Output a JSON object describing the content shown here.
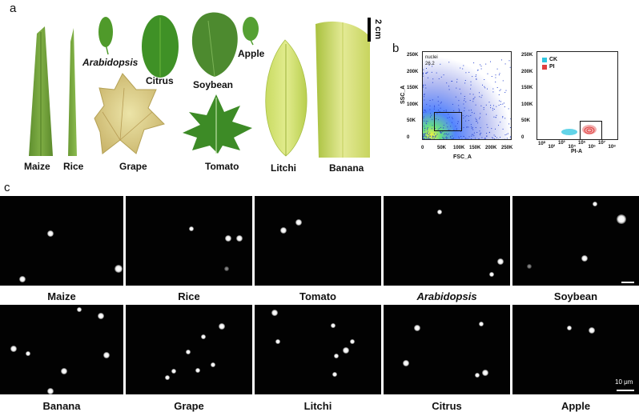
{
  "panels": {
    "a": "a",
    "b": "b",
    "c": "c"
  },
  "leaves": {
    "maize": "Maize",
    "rice": "Rice",
    "arabidopsis": "Arabidopsis",
    "grape": "Grape",
    "citrus": "Citrus",
    "soybean": "Soybean",
    "apple": "Apple",
    "tomato": "Tomato",
    "litchi": "Litchi",
    "banana": "Banana",
    "scale_label": "2 cm"
  },
  "flow_left": {
    "gate_name": "nuclei",
    "gate_value": "26.2",
    "xlabel": "FSC_A",
    "ylabel": "SSC_A",
    "x_ticks": [
      "0",
      "50K",
      "100K",
      "150K",
      "200K",
      "250K"
    ],
    "y_ticks": [
      "250K",
      "200K",
      "150K",
      "100K",
      "50K",
      "0"
    ]
  },
  "flow_right": {
    "legend": [
      {
        "name": "CK",
        "color": "#2fc6e0"
      },
      {
        "name": "PI",
        "color": "#e04040"
      }
    ],
    "xlabel": "PI-A",
    "x_ticks": [
      "10⁰",
      "10²",
      "10³",
      "10⁴",
      "10⁵",
      "10⁶",
      "10⁷",
      "10⁸"
    ],
    "y_ticks": [
      "250K",
      "200K",
      "150K",
      "100K",
      "50K",
      "0"
    ]
  },
  "micro_row1": [
    "Maize",
    "Rice",
    "Tomato",
    "Arabidopsis",
    "Soybean"
  ],
  "micro_row2": [
    "Banana",
    "Grape",
    "Litchi",
    "Citrus",
    "Apple"
  ],
  "micro_scale": "10 μm"
}
